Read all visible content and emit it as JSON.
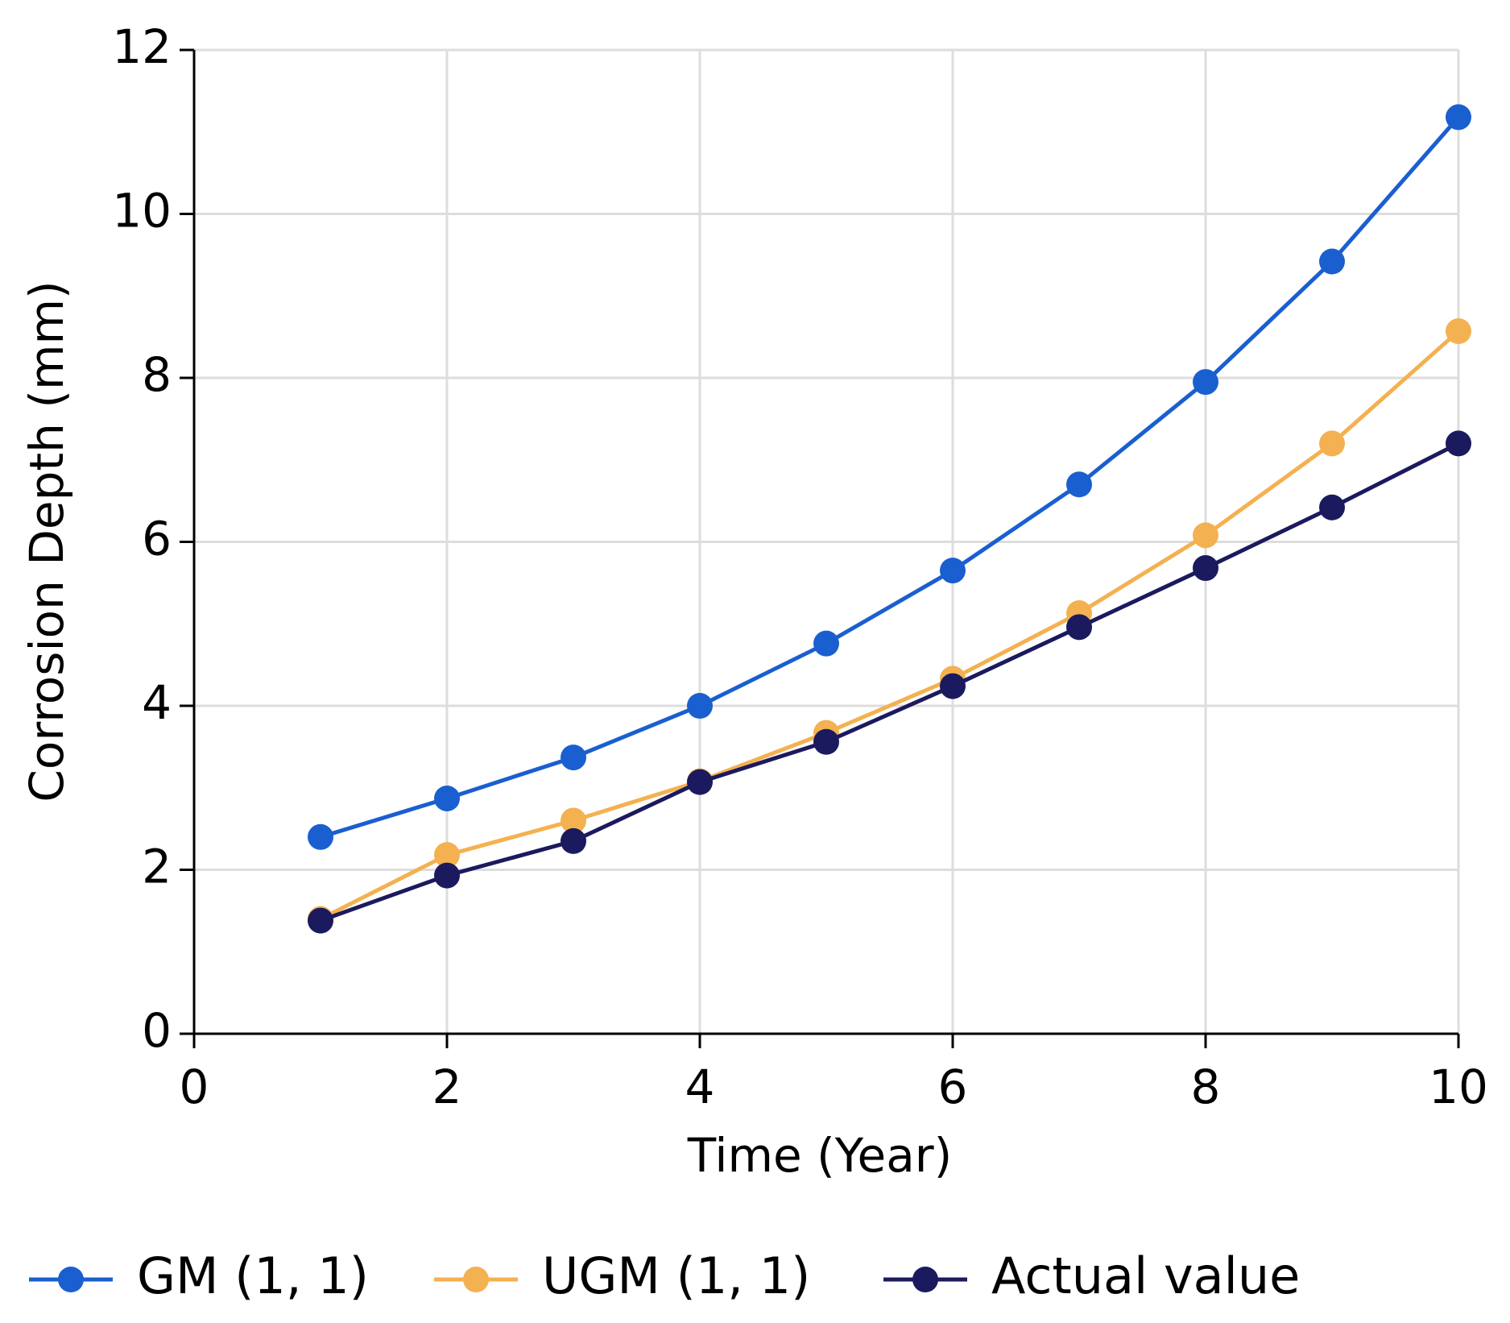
{
  "chart_data": {
    "type": "line",
    "xlabel": "Time (Year)",
    "ylabel": "Corrosion Depth (mm)",
    "x": [
      1,
      2,
      3,
      4,
      5,
      6,
      7,
      8,
      9,
      10
    ],
    "series": [
      {
        "name": "GM (1, 1)",
        "color": "#1a5fd0",
        "values": [
          2.4,
          2.87,
          3.37,
          4.0,
          4.76,
          5.65,
          6.7,
          7.95,
          9.42,
          11.18
        ]
      },
      {
        "name": "UGM (1, 1)",
        "color": "#f4b151",
        "values": [
          1.4,
          2.18,
          2.6,
          3.08,
          3.67,
          4.33,
          5.13,
          6.08,
          7.2,
          8.57
        ]
      },
      {
        "name": "Actual value",
        "color": "#1b1a5e",
        "values": [
          1.38,
          1.93,
          2.35,
          3.07,
          3.56,
          4.24,
          4.96,
          5.68,
          6.42,
          7.2
        ]
      }
    ],
    "xlim": [
      0,
      10
    ],
    "xticks": [
      0,
      2,
      4,
      6,
      8,
      10
    ],
    "ylim": [
      0,
      12
    ],
    "yticks": [
      0,
      2,
      4,
      6,
      8,
      10,
      12
    ],
    "grid": true,
    "legend": "bottom"
  }
}
